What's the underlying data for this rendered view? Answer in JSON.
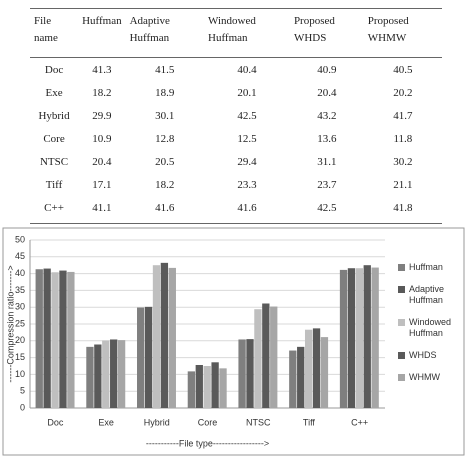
{
  "table": {
    "header": [
      "File name",
      "Huffman",
      "Adaptive Huffman",
      "Windowed Huffman",
      "Proposed WHDS",
      "Proposed WHMW"
    ],
    "rows": [
      [
        "Doc",
        41.3,
        41.5,
        40.4,
        40.9,
        40.5
      ],
      [
        "Exe",
        18.2,
        18.9,
        20.1,
        20.4,
        20.2
      ],
      [
        "Hybrid",
        29.9,
        30.1,
        42.5,
        43.2,
        41.7
      ],
      [
        "Core",
        10.9,
        12.8,
        12.5,
        13.6,
        11.8
      ],
      [
        "NTSC",
        20.4,
        20.5,
        29.4,
        31.1,
        30.2
      ],
      [
        "Tiff",
        17.1,
        18.2,
        23.3,
        23.7,
        21.1
      ],
      [
        "C++",
        41.1,
        41.6,
        41.6,
        42.5,
        41.8
      ]
    ]
  },
  "chart_data": {
    "type": "bar",
    "x_label": "-----------File type----------------->",
    "y_label": "------Compression ratio------->",
    "categories": [
      "Doc",
      "Exe",
      "Hybrid",
      "Core",
      "NTSC",
      "Tiff",
      "C++"
    ],
    "series": [
      {
        "name": "Huffman",
        "color": "#7f7f7f",
        "values": [
          41.3,
          18.2,
          29.9,
          10.9,
          20.4,
          17.1,
          41.1
        ]
      },
      {
        "name": "Adaptive Huffman",
        "color": "#595959",
        "values": [
          41.5,
          18.9,
          30.1,
          12.8,
          20.5,
          18.2,
          41.6
        ]
      },
      {
        "name": "Windowed Huffman",
        "color": "#bfbfbf",
        "values": [
          40.4,
          20.1,
          42.5,
          12.5,
          29.4,
          23.3,
          41.6
        ]
      },
      {
        "name": "WHDS",
        "color": "#5a5a5a",
        "values": [
          40.9,
          20.4,
          43.2,
          13.6,
          31.1,
          23.7,
          42.5
        ]
      },
      {
        "name": "WHMW",
        "color": "#a6a6a6",
        "values": [
          40.5,
          20.2,
          41.7,
          11.8,
          30.2,
          21.1,
          41.8
        ]
      }
    ],
    "ylim": [
      0,
      50
    ],
    "yticks": [
      0,
      5,
      10,
      15,
      20,
      25,
      30,
      35,
      40,
      45,
      50
    ],
    "grid": true
  }
}
